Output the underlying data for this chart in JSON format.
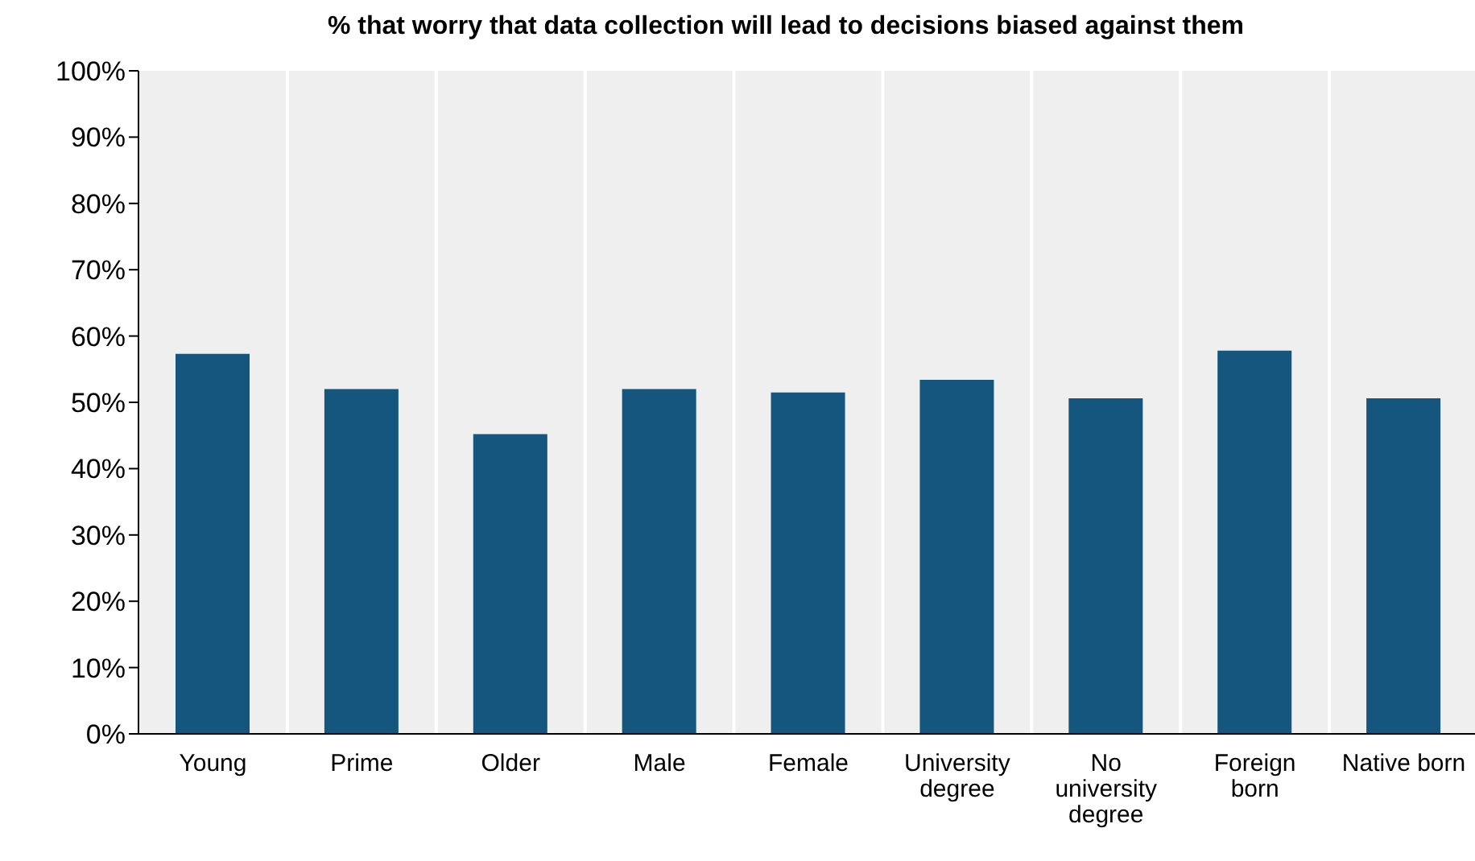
{
  "chart_data": {
    "type": "bar",
    "title": "% that worry that data collection will lead to decisions biased against them",
    "categories": [
      "Young",
      "Prime",
      "Older",
      "Male",
      "Female",
      "University degree",
      "No university degree",
      "Foreign born",
      "Native born"
    ],
    "values": [
      57.3,
      52,
      45.2,
      52,
      51.5,
      53.4,
      50.6,
      57.8,
      50.6
    ],
    "color": "#14567e",
    "ylim": [
      0,
      100
    ],
    "yticks": [
      {
        "value": 0,
        "label": "0%"
      },
      {
        "value": 10,
        "label": "10%"
      },
      {
        "value": 20,
        "label": "20%"
      },
      {
        "value": 30,
        "label": "30%"
      },
      {
        "value": 40,
        "label": "40%"
      },
      {
        "value": 50,
        "label": "50%"
      },
      {
        "value": 60,
        "label": "60%"
      },
      {
        "value": 70,
        "label": "70%"
      },
      {
        "value": 80,
        "label": "80%"
      },
      {
        "value": 90,
        "label": "90%"
      },
      {
        "value": 100,
        "label": "100%"
      }
    ],
    "grid": "x",
    "legend": false
  }
}
